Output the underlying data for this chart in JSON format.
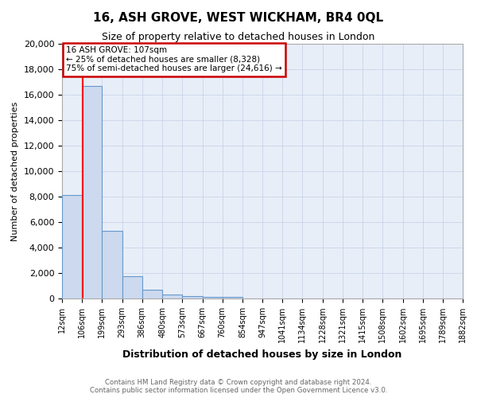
{
  "title": "16, ASH GROVE, WEST WICKHAM, BR4 0QL",
  "subtitle": "Size of property relative to detached houses in London",
  "xlabel": "Distribution of detached houses by size in London",
  "ylabel": "Number of detached properties",
  "bar_values": [
    8100,
    16700,
    5300,
    1750,
    700,
    300,
    200,
    150,
    100,
    0,
    0,
    0,
    0,
    0,
    0,
    0,
    0,
    0,
    0,
    0
  ],
  "bar_left_edges": [
    12,
    106,
    199,
    293,
    386,
    480,
    573,
    667,
    760,
    854,
    947,
    1041,
    1134,
    1228,
    1321,
    1415,
    1508,
    1602,
    1695,
    1789
  ],
  "bar_widths": [
    94,
    93,
    94,
    93,
    94,
    93,
    94,
    93,
    94,
    93,
    94,
    93,
    94,
    93,
    94,
    93,
    94,
    93,
    94,
    93
  ],
  "x_tick_labels": [
    "12sqm",
    "106sqm",
    "199sqm",
    "293sqm",
    "386sqm",
    "480sqm",
    "573sqm",
    "667sqm",
    "760sqm",
    "854sqm",
    "947sqm",
    "1041sqm",
    "1134sqm",
    "1228sqm",
    "1321sqm",
    "1415sqm",
    "1508sqm",
    "1602sqm",
    "1695sqm",
    "1789sqm",
    "1882sqm"
  ],
  "x_tick_positions": [
    12,
    106,
    199,
    293,
    386,
    480,
    573,
    667,
    760,
    854,
    947,
    1041,
    1134,
    1228,
    1321,
    1415,
    1508,
    1602,
    1695,
    1789,
    1882
  ],
  "ylim": [
    0,
    20000
  ],
  "xlim": [
    12,
    1882
  ],
  "bar_color": "#ccd9ee",
  "bar_edge_color": "#6699cc",
  "red_line_x": 107,
  "annotation_text": "16 ASH GROVE: 107sqm\n← 25% of detached houses are smaller (8,328)\n75% of semi-detached houses are larger (24,616) →",
  "annotation_box_color": "#ffffff",
  "annotation_box_edge_color": "#cc0000",
  "footer_line1": "Contains HM Land Registry data © Crown copyright and database right 2024.",
  "footer_line2": "Contains public sector information licensed under the Open Government Licence v3.0.",
  "background_color": "#ffffff",
  "plot_bg_color": "#e8eef8",
  "grid_color": "#c8d4e8",
  "ytick_values": [
    0,
    2000,
    4000,
    6000,
    8000,
    10000,
    12000,
    14000,
    16000,
    18000,
    20000
  ]
}
